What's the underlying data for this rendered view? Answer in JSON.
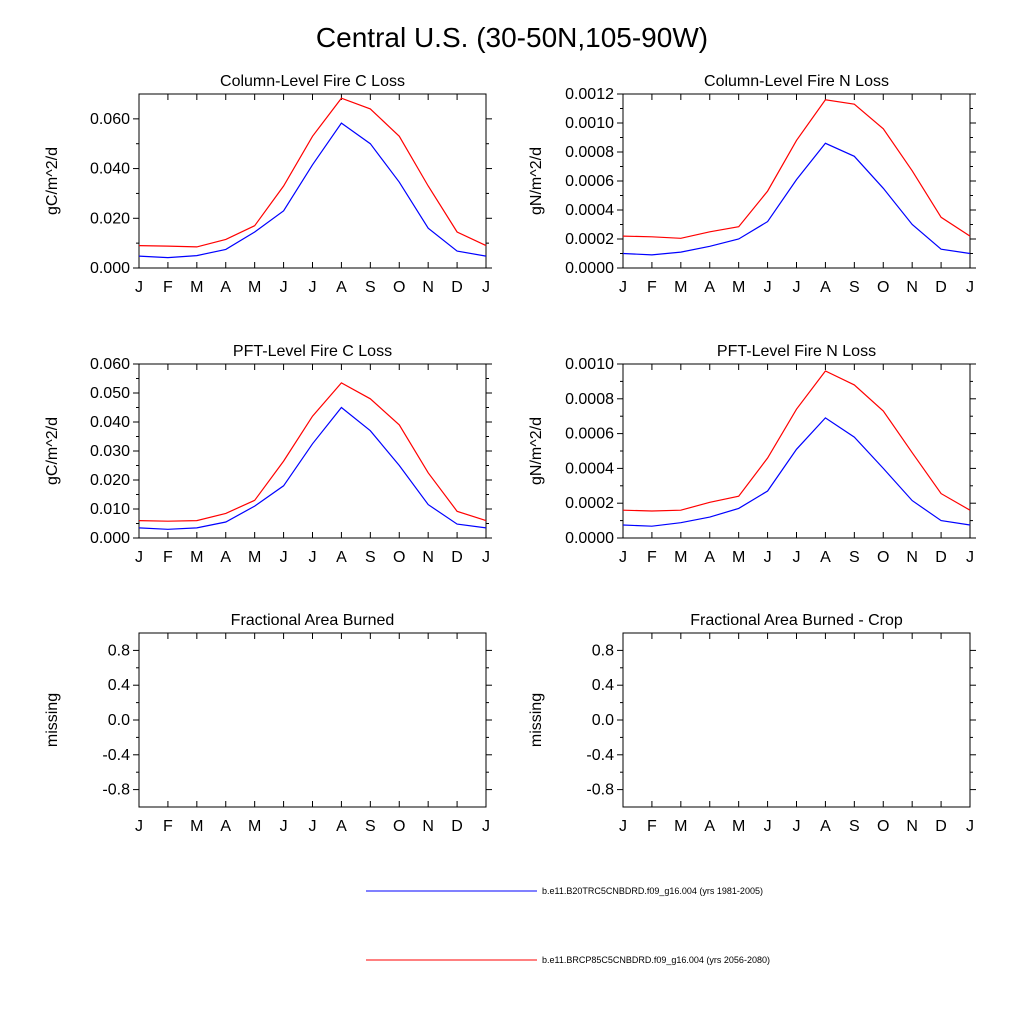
{
  "figure": {
    "title": "Central U.S. (30-50N,105-90W)",
    "legend": [
      {
        "label": "b.e11.B20TRC5CNBDRD.f09_g16.004 (yrs 1981-2005)",
        "color": "#0000ff"
      },
      {
        "label": "b.e11.BRCP85C5CNBDRD.f09_g16.004 (yrs 2056-2080)",
        "color": "#ff0000"
      }
    ]
  },
  "chart_data": [
    {
      "type": "line",
      "title": "Column-Level Fire C Loss",
      "ylabel": "gC/m^2/d",
      "xlabel": "",
      "categories": [
        "J",
        "F",
        "M",
        "A",
        "M",
        "J",
        "J",
        "A",
        "S",
        "O",
        "N",
        "D",
        "J"
      ],
      "ylim": [
        0,
        0.07
      ],
      "yticks": [
        0.0,
        0.02,
        0.04,
        0.06
      ],
      "ytick_labels": [
        "0.000",
        "0.020",
        "0.040",
        "0.060"
      ],
      "series": [
        {
          "name": "b.e11.B20TRC5CNBDRD.f09_g16.004 (yrs 1981-2005)",
          "color": "#0000ff",
          "values": [
            0.0048,
            0.0042,
            0.005,
            0.0075,
            0.0145,
            0.023,
            0.0415,
            0.0583,
            0.05,
            0.0345,
            0.016,
            0.0068,
            0.0048
          ]
        },
        {
          "name": "b.e11.BRCP85C5CNBDRD.f09_g16.004 (yrs 2056-2080)",
          "color": "#ff0000",
          "values": [
            0.009,
            0.0088,
            0.0085,
            0.0115,
            0.017,
            0.033,
            0.053,
            0.0683,
            0.064,
            0.053,
            0.033,
            0.0145,
            0.009
          ]
        }
      ]
    },
    {
      "type": "line",
      "title": "Column-Level Fire N Loss",
      "ylabel": "gN/m^2/d",
      "xlabel": "",
      "categories": [
        "J",
        "F",
        "M",
        "A",
        "M",
        "J",
        "J",
        "A",
        "S",
        "O",
        "N",
        "D",
        "J"
      ],
      "ylim": [
        0,
        0.0012
      ],
      "yticks": [
        0.0,
        0.0002,
        0.0004,
        0.0006,
        0.0008,
        0.001,
        0.0012
      ],
      "ytick_labels": [
        "0.0000",
        "0.0002",
        "0.0004",
        "0.0006",
        "0.0008",
        "0.0010",
        "0.0012"
      ],
      "series": [
        {
          "name": "b.e11.B20TRC5CNBDRD.f09_g16.004 (yrs 1981-2005)",
          "color": "#0000ff",
          "values": [
            0.0001,
            9e-05,
            0.00011,
            0.00015,
            0.0002,
            0.00032,
            0.00061,
            0.00086,
            0.00077,
            0.00055,
            0.0003,
            0.00013,
            0.0001
          ]
        },
        {
          "name": "b.e11.BRCP85C5CNBDRD.f09_g16.004 (yrs 2056-2080)",
          "color": "#ff0000",
          "values": [
            0.00022,
            0.000215,
            0.000205,
            0.00025,
            0.000285,
            0.00053,
            0.00088,
            0.00116,
            0.00113,
            0.00096,
            0.00067,
            0.00035,
            0.00022
          ]
        }
      ]
    },
    {
      "type": "line",
      "title": "PFT-Level Fire C Loss",
      "ylabel": "gC/m^2/d",
      "xlabel": "",
      "categories": [
        "J",
        "F",
        "M",
        "A",
        "M",
        "J",
        "J",
        "A",
        "S",
        "O",
        "N",
        "D",
        "J"
      ],
      "ylim": [
        0,
        0.06
      ],
      "yticks": [
        0.0,
        0.01,
        0.02,
        0.03,
        0.04,
        0.05,
        0.06
      ],
      "ytick_labels": [
        "0.000",
        "0.010",
        "0.020",
        "0.030",
        "0.040",
        "0.050",
        "0.060"
      ],
      "series": [
        {
          "name": "b.e11.B20TRC5CNBDRD.f09_g16.004 (yrs 1981-2005)",
          "color": "#0000ff",
          "values": [
            0.0035,
            0.003,
            0.0035,
            0.0055,
            0.011,
            0.018,
            0.0325,
            0.045,
            0.037,
            0.025,
            0.0115,
            0.0048,
            0.0035
          ]
        },
        {
          "name": "b.e11.BRCP85C5CNBDRD.f09_g16.004 (yrs 2056-2080)",
          "color": "#ff0000",
          "values": [
            0.006,
            0.0058,
            0.006,
            0.0085,
            0.013,
            0.0265,
            0.042,
            0.0535,
            0.048,
            0.039,
            0.0225,
            0.0092,
            0.006
          ]
        }
      ]
    },
    {
      "type": "line",
      "title": "PFT-Level Fire N Loss",
      "ylabel": "gN/m^2/d",
      "xlabel": "",
      "categories": [
        "J",
        "F",
        "M",
        "A",
        "M",
        "J",
        "J",
        "A",
        "S",
        "O",
        "N",
        "D",
        "J"
      ],
      "ylim": [
        0,
        0.001
      ],
      "yticks": [
        0.0,
        0.0002,
        0.0004,
        0.0006,
        0.0008,
        0.001
      ],
      "ytick_labels": [
        "0.0000",
        "0.0002",
        "0.0004",
        "0.0006",
        "0.0008",
        "0.0010"
      ],
      "series": [
        {
          "name": "b.e11.B20TRC5CNBDRD.f09_g16.004 (yrs 1981-2005)",
          "color": "#0000ff",
          "values": [
            7.5e-05,
            6.8e-05,
            8.8e-05,
            0.00012,
            0.00017,
            0.00027,
            0.00051,
            0.00069,
            0.00058,
            0.0004,
            0.000215,
            0.0001,
            7.5e-05
          ]
        },
        {
          "name": "b.e11.BRCP85C5CNBDRD.f09_g16.004 (yrs 2056-2080)",
          "color": "#ff0000",
          "values": [
            0.00016,
            0.000155,
            0.00016,
            0.000205,
            0.00024,
            0.00046,
            0.00074,
            0.00096,
            0.00088,
            0.00073,
            0.00049,
            0.000255,
            0.00016
          ]
        }
      ]
    },
    {
      "type": "line",
      "title": "Fractional Area Burned",
      "ylabel": "missing",
      "xlabel": "",
      "categories": [
        "J",
        "F",
        "M",
        "A",
        "M",
        "J",
        "J",
        "A",
        "S",
        "O",
        "N",
        "D",
        "J"
      ],
      "ylim": [
        -1,
        1
      ],
      "yticks": [
        -0.8,
        -0.4,
        0.0,
        0.4,
        0.8
      ],
      "ytick_labels": [
        "-0.8",
        "-0.4",
        "0.0",
        "0.4",
        "0.8"
      ],
      "series": []
    },
    {
      "type": "line",
      "title": "Fractional Area Burned - Crop",
      "ylabel": "missing",
      "xlabel": "",
      "categories": [
        "J",
        "F",
        "M",
        "A",
        "M",
        "J",
        "J",
        "A",
        "S",
        "O",
        "N",
        "D",
        "J"
      ],
      "ylim": [
        -1,
        1
      ],
      "yticks": [
        -0.8,
        -0.4,
        0.0,
        0.4,
        0.8
      ],
      "ytick_labels": [
        "-0.8",
        "-0.4",
        "0.0",
        "0.4",
        "0.8"
      ],
      "series": []
    }
  ]
}
